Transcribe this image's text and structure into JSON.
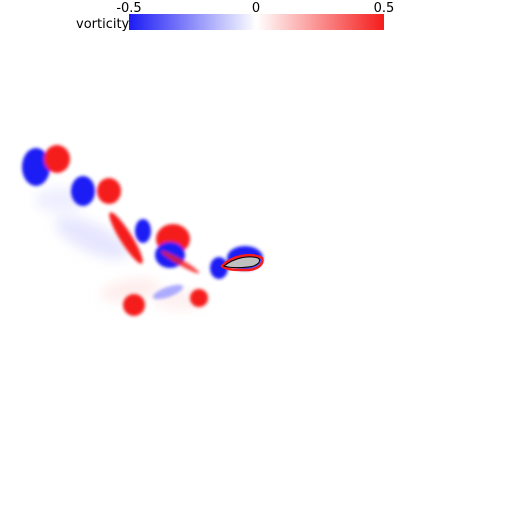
{
  "colorbar": {
    "label": "vorticity",
    "ticks": [
      "-0.5",
      "0",
      "0.5"
    ],
    "min_color": "#1c1cf5",
    "mid_color": "#ffffff",
    "max_color": "#f51c1c"
  },
  "airfoil": {
    "fill_color": "#c0c0c0",
    "outline_color": "#000000"
  }
}
